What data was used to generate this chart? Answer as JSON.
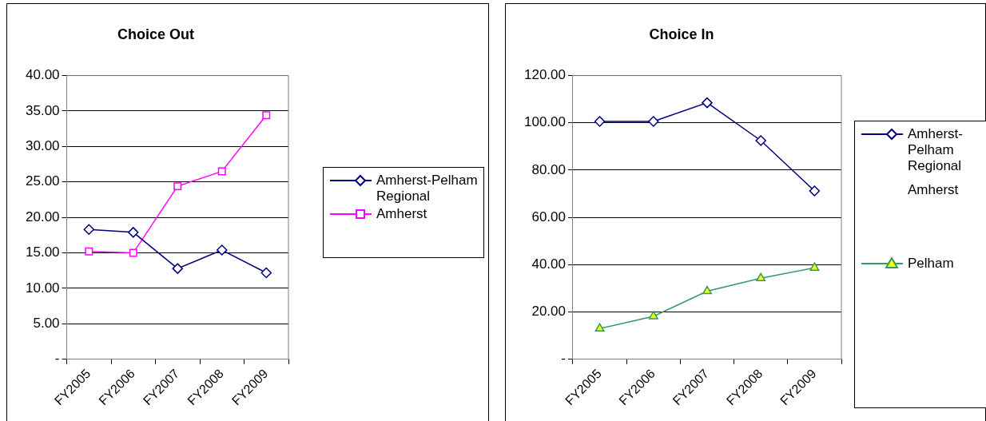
{
  "chart_data": [
    {
      "type": "line",
      "title": "Choice Out",
      "categories": [
        "FY2005",
        "FY2006",
        "FY2007",
        "FY2008",
        "FY2009"
      ],
      "series": [
        {
          "name": "Amherst-Pelham Regional",
          "color": "#000080",
          "marker": "diamond",
          "values": [
            18.3,
            17.9,
            12.8,
            15.4,
            12.2
          ]
        },
        {
          "name": "Amherst",
          "color": "#ff00ff",
          "marker": "square",
          "values": [
            15.2,
            15.0,
            24.4,
            26.5,
            34.4
          ]
        }
      ],
      "ylim": [
        0,
        40
      ],
      "yticks": [
        {
          "value": 0,
          "label": "-"
        },
        {
          "value": 5,
          "label": "5.00"
        },
        {
          "value": 10,
          "label": "10.00"
        },
        {
          "value": 15,
          "label": "15.00"
        },
        {
          "value": 20,
          "label": "20.00"
        },
        {
          "value": 25,
          "label": "25.00"
        },
        {
          "value": 30,
          "label": "30.00"
        },
        {
          "value": 35,
          "label": "35.00"
        },
        {
          "value": 40,
          "label": "40.00"
        }
      ],
      "grid": "y",
      "legend": "right"
    },
    {
      "type": "line",
      "title": "Choice In",
      "categories": [
        "FY2005",
        "FY2006",
        "FY2007",
        "FY2008",
        "FY2009"
      ],
      "series": [
        {
          "name": "Amherst-Pelham Regional",
          "color": "#000080",
          "marker": "diamond",
          "values": [
            100.6,
            100.6,
            108.5,
            92.5,
            71.2
          ]
        },
        {
          "name": "Amherst",
          "marker": "none",
          "values": [
            null,
            null,
            null,
            null,
            null
          ]
        },
        {
          "name": "Pelham",
          "color": "#339966",
          "marker": "triangle",
          "values": [
            13.0,
            18.2,
            28.8,
            34.3,
            38.7
          ]
        }
      ],
      "ylim": [
        0,
        120
      ],
      "yticks": [
        {
          "value": 0,
          "label": "-"
        },
        {
          "value": 20,
          "label": "20.00"
        },
        {
          "value": 40,
          "label": "40.00"
        },
        {
          "value": 60,
          "label": "60.00"
        },
        {
          "value": 80,
          "label": "80.00"
        },
        {
          "value": 100,
          "label": "100.00"
        },
        {
          "value": 120,
          "label": "120.00"
        }
      ],
      "grid": "y",
      "legend": "right"
    }
  ]
}
